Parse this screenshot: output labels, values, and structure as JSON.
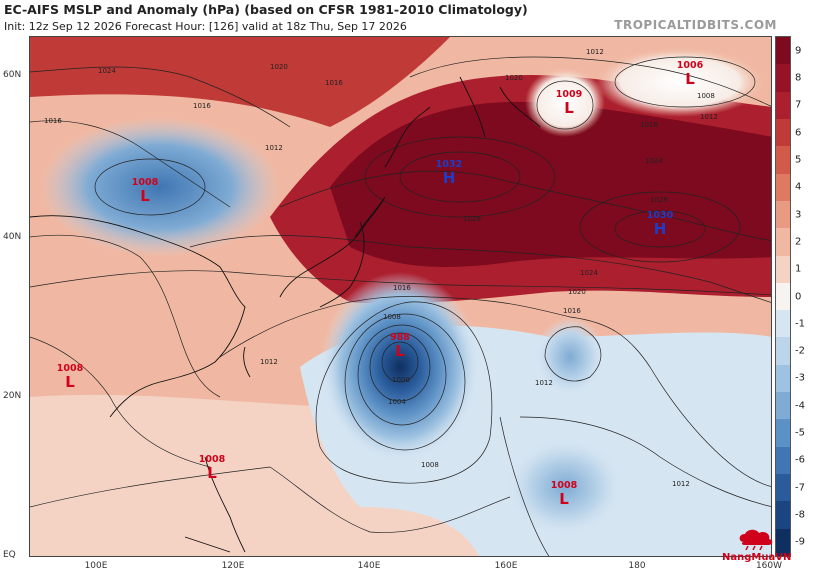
{
  "header": {
    "title": "EC-AIFS MSLP and Anomaly (hPa) (based on CFSR 1981-2010 Climatology)",
    "subtitle": "Init: 12z Sep 12 2026   Forecast Hour: [126]   valid at 18z Thu, Sep 17 2026",
    "credit": "TROPICALTIDBITS.COM"
  },
  "axes": {
    "lat_labels": [
      "60N",
      "40N",
      "20N",
      "EQ"
    ],
    "lon_labels": [
      "100E",
      "120E",
      "140E",
      "160E",
      "180",
      "160W"
    ]
  },
  "colorbar": {
    "labels": [
      "9",
      "7",
      "5",
      "3",
      "1",
      "-1",
      "-3",
      "-5",
      "-7",
      "-9",
      "8",
      "6",
      "4",
      "2",
      "0",
      "-2",
      "-4",
      "-6",
      "-8"
    ],
    "ticks": [
      "9",
      "8",
      "7",
      "6",
      "5",
      "4",
      "3",
      "2",
      "1",
      "0",
      "-1",
      "-2",
      "-3",
      "-4",
      "-5",
      "-6",
      "-7",
      "-8",
      "-9"
    ],
    "colors": [
      "#7d0a1e",
      "#961227",
      "#ac1f2e",
      "#c03a37",
      "#d25a4a",
      "#df7a62",
      "#e99a82",
      "#f0b8a2",
      "#f5d3c4",
      "#f7f3f1",
      "#d6e5f2",
      "#bcd5ea",
      "#9ec2e1",
      "#7fabd4",
      "#5c91c5",
      "#3f76b3",
      "#2a5c9c",
      "#1a4580",
      "#0f2f60"
    ]
  },
  "systems": [
    {
      "type": "L",
      "value": "1006"
    },
    {
      "type": "L",
      "value": "1009"
    },
    {
      "type": "L",
      "value": "1008"
    },
    {
      "type": "H",
      "value": "1032"
    },
    {
      "type": "H",
      "value": "1030"
    },
    {
      "type": "L",
      "value": "988"
    },
    {
      "type": "L",
      "value": "1008"
    },
    {
      "type": "L",
      "value": "1008"
    },
    {
      "type": "L",
      "value": "1008"
    }
  ],
  "isobar_labels": [
    "1012",
    "1024",
    "1020",
    "1016",
    "1016",
    "1012",
    "1028",
    "1024",
    "1020",
    "1016",
    "1012",
    "1008",
    "1004",
    "1000",
    "1008",
    "1012",
    "1012",
    "1016",
    "1028",
    "1008",
    "1024",
    "1012",
    "1020",
    "1016",
    "1016"
  ],
  "watermark": "NangMuaVN",
  "colors": {
    "low": "#d0021b",
    "high": "#1d3cc7"
  }
}
